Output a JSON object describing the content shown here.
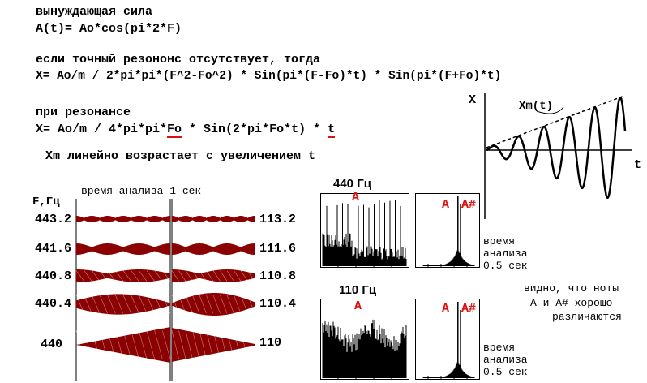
{
  "formulas": {
    "line1": "вынуждающая сила",
    "line2": "A(t)= Ao*cos(pi*2*F)",
    "line3": "если точный резононс отсутствует, тогда",
    "line4": "X= Ao/m / 2*pi*pi*(F^2-Fo^2) * Sin(pi*(F-Fo)*t) * Sin(pi*(F+Fo)*t)",
    "line5": "при резонансе",
    "line6_a": "X= Ao/m / 4*pi*pi*",
    "line6_fo": "Fo",
    "line6_b": " * Sin(2*pi*Fo*t) * ",
    "line6_t": "t",
    "line7": "Xm линейно возрастает с увеличением t"
  },
  "osc_plot": {
    "y_label": "X",
    "x_label": "t",
    "envelope_label": "Xm(t)"
  },
  "beats": {
    "caption": "время анализа 1 сек",
    "axis_label": "F,Гц",
    "left_labels": [
      "443.2",
      "441.6",
      "440.8",
      "440.4",
      "440"
    ],
    "right_labels": [
      "113.2",
      "111.6",
      "110.8",
      "110.4",
      "110"
    ]
  },
  "spectra": {
    "top_title": "440 Гц",
    "bottom_title": "110 Гц",
    "note_a": "A",
    "note_pair_a": "A",
    "note_pair_as": "A#",
    "note_a2": "A",
    "note_pair_a2": "A",
    "note_pair_as2": "A#"
  },
  "notes": {
    "analysis_top_1": "время",
    "analysis_top_2": "анализа",
    "analysis_top_3": "0.5 сек",
    "analysis_bot_1": "время",
    "analysis_bot_2": "анализа",
    "analysis_bot_3": "0.5 сек",
    "visible_1": "видно, что ноты",
    "visible_2": "А и А# хорошо",
    "visible_3": "различаются"
  },
  "colors": {
    "beat_fill": "#8b0000",
    "note_red": "#e01010",
    "underline_red": "#e01010"
  }
}
